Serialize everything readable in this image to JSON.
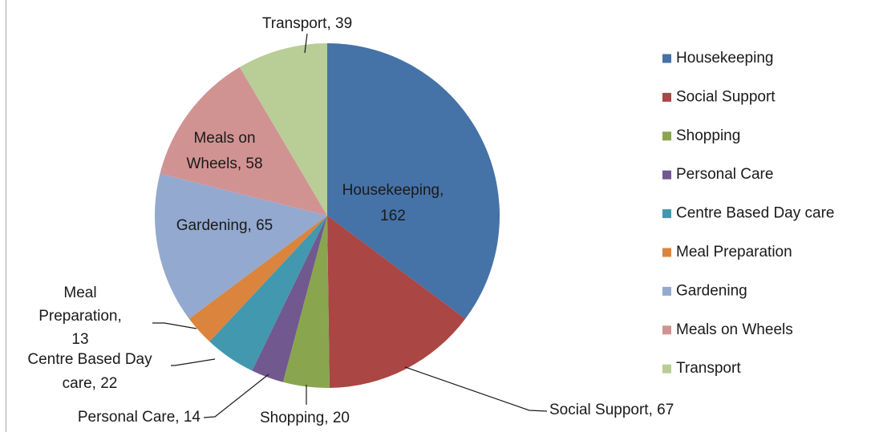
{
  "chart_data": {
    "type": "pie",
    "categories": [
      "Housekeeping",
      "Social Support",
      "Shopping",
      "Personal Care",
      "Centre Based Day care",
      "Meal Preparation",
      "Gardening",
      "Meals on Wheels",
      "Transport"
    ],
    "values": [
      162,
      67,
      20,
      14,
      22,
      13,
      65,
      58,
      39
    ],
    "value_labels": [
      "Housekeeping, 162",
      "Social Support, 67",
      "Shopping, 20",
      "Personal Care, 14",
      "Centre Based Day care, 22",
      "Meal Preparation, 13",
      "Gardening, 65",
      "Meals on Wheels, 58",
      "Transport, 39"
    ],
    "colors": [
      "#4572a7",
      "#aa4643",
      "#89a54e",
      "#71588f",
      "#4198af",
      "#db843d",
      "#93a9cf",
      "#d19392",
      "#b9cd96"
    ],
    "legend": "right"
  }
}
